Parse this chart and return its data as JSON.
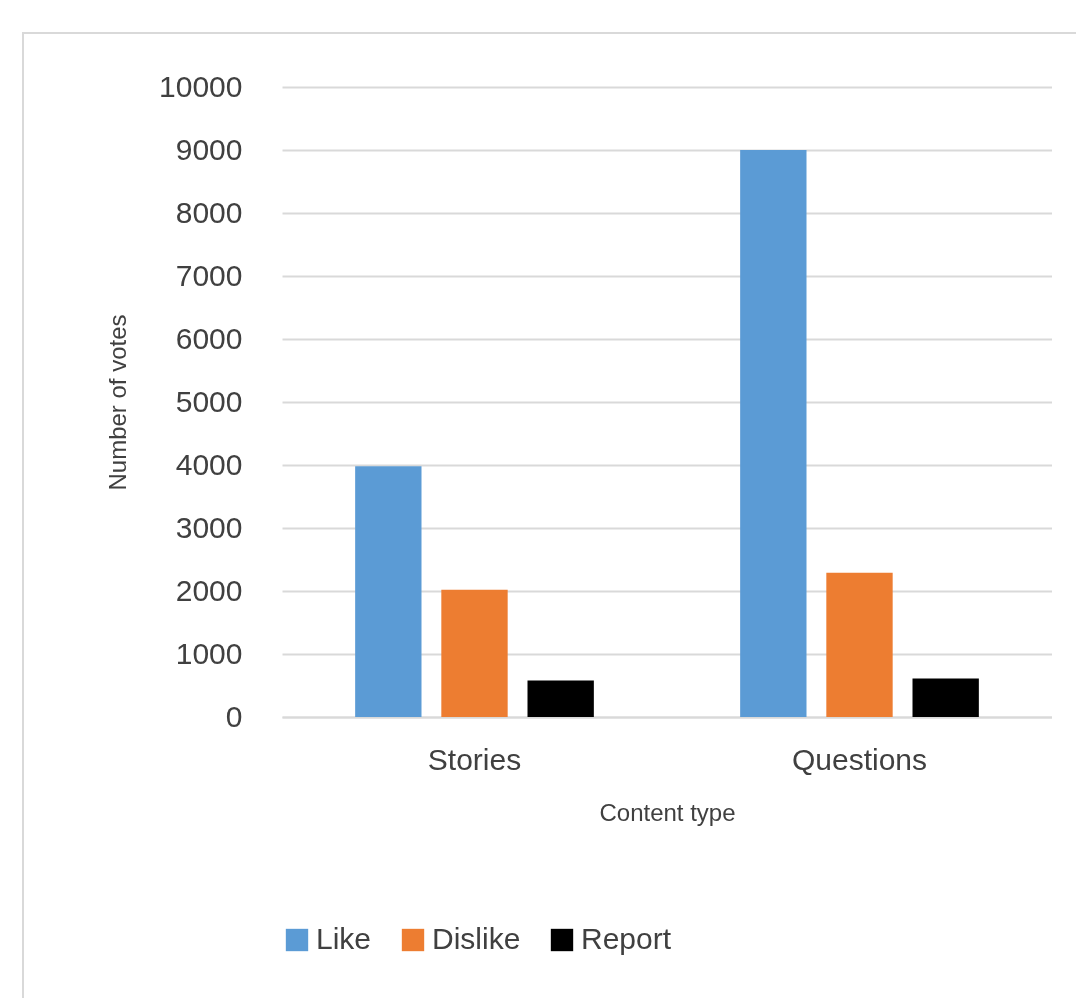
{
  "chart_data": {
    "type": "bar",
    "xlabel": "Content type",
    "ylabel": "Number of votes",
    "categories": [
      "Stories",
      "Questions"
    ],
    "series": [
      {
        "name": "Like",
        "color": "#5b9bd5",
        "values": [
          3980,
          9000
        ]
      },
      {
        "name": "Dislike",
        "color": "#ed7d31",
        "values": [
          2020,
          2290
        ]
      },
      {
        "name": "Report",
        "color": "#000000",
        "values": [
          580,
          610
        ]
      }
    ],
    "ylim": [
      0,
      10000
    ],
    "yticks": [
      0,
      1000,
      2000,
      3000,
      4000,
      5000,
      6000,
      7000,
      8000,
      9000,
      10000
    ],
    "grid": "y",
    "legend": "bottom"
  }
}
